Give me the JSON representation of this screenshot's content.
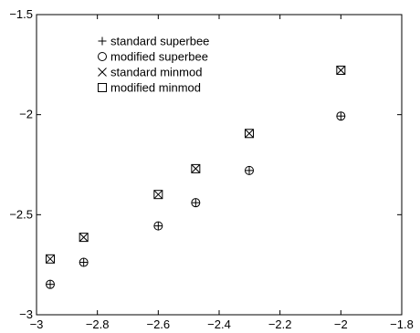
{
  "chart_data": {
    "type": "scatter",
    "title": "",
    "xlabel": "",
    "ylabel": "",
    "xlim": [
      -3,
      -1.8
    ],
    "ylim": [
      -3,
      -1.5
    ],
    "x_ticks": [
      -3,
      -2.8,
      -2.6,
      -2.4,
      -2.2,
      -2,
      -1.8
    ],
    "x_tick_labels": [
      "−3",
      "−2.8",
      "−2.6",
      "−2.4",
      "−2.2",
      "−2",
      "−1.8"
    ],
    "y_ticks": [
      -3,
      -2.5,
      -2,
      -1.5
    ],
    "y_tick_labels": [
      "−3",
      "−2.5",
      "−2",
      "−1.5"
    ],
    "grid": false,
    "legend_position": "top-left",
    "series": [
      {
        "name": "standard superbee",
        "marker": "plus",
        "points": [
          {
            "x": -2.955,
            "y": -2.848
          },
          {
            "x": -2.845,
            "y": -2.738
          },
          {
            "x": -2.6,
            "y": -2.556
          },
          {
            "x": -2.477,
            "y": -2.44
          },
          {
            "x": -2.301,
            "y": -2.279
          },
          {
            "x": -2.0,
            "y": -2.007
          }
        ]
      },
      {
        "name": "modified superbee",
        "marker": "circle",
        "points": [
          {
            "x": -2.955,
            "y": -2.848
          },
          {
            "x": -2.845,
            "y": -2.738
          },
          {
            "x": -2.6,
            "y": -2.556
          },
          {
            "x": -2.477,
            "y": -2.44
          },
          {
            "x": -2.301,
            "y": -2.279
          },
          {
            "x": -2.0,
            "y": -2.007
          }
        ]
      },
      {
        "name": "standard minmod",
        "marker": "cross",
        "points": [
          {
            "x": -2.955,
            "y": -2.721
          },
          {
            "x": -2.845,
            "y": -2.613
          },
          {
            "x": -2.6,
            "y": -2.399
          },
          {
            "x": -2.477,
            "y": -2.27
          },
          {
            "x": -2.301,
            "y": -2.094
          },
          {
            "x": -2.0,
            "y": -1.778
          }
        ]
      },
      {
        "name": "modified minmod",
        "marker": "square",
        "points": [
          {
            "x": -2.955,
            "y": -2.721
          },
          {
            "x": -2.845,
            "y": -2.613
          },
          {
            "x": -2.6,
            "y": -2.399
          },
          {
            "x": -2.477,
            "y": -2.27
          },
          {
            "x": -2.301,
            "y": -2.094
          },
          {
            "x": -2.0,
            "y": -1.778
          }
        ]
      }
    ]
  }
}
